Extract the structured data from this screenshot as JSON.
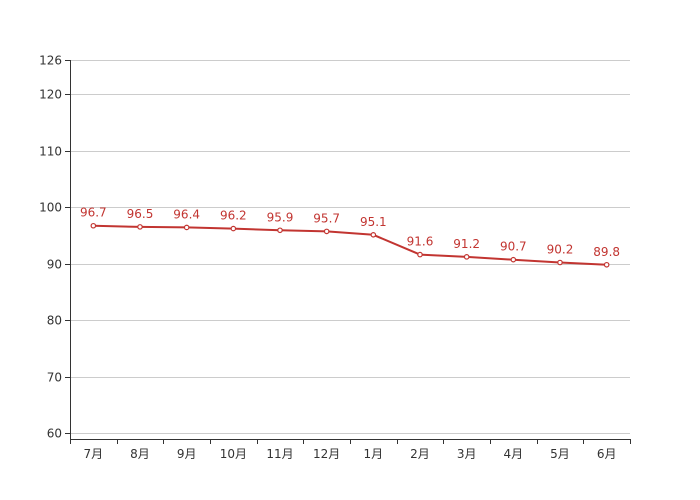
{
  "chart_data": {
    "type": "line",
    "categories": [
      "7月",
      "8月",
      "9月",
      "10月",
      "11月",
      "12月",
      "1月",
      "2月",
      "3月",
      "4月",
      "5月",
      "6月"
    ],
    "series": [
      {
        "values": [
          96.7,
          96.5,
          96.4,
          96.2,
          95.9,
          95.7,
          95.1,
          91.6,
          91.2,
          90.7,
          90.2,
          89.8
        ]
      }
    ],
    "yticks": [
      60,
      70,
      80,
      90,
      100,
      110,
      120,
      126
    ],
    "ylim": [
      59,
      126
    ],
    "grid": true,
    "data_labels": true,
    "colors": {
      "line": "#c23531",
      "grid": "#cccccc",
      "axis": "#333333",
      "text": "#333333"
    }
  }
}
